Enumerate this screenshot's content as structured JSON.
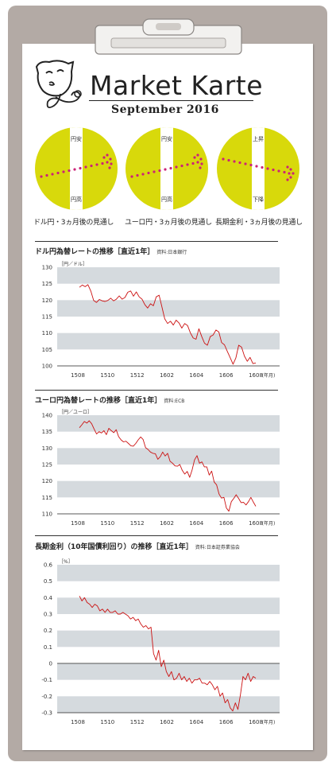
{
  "header": {
    "title": "Market Karte",
    "subtitle": "September   2016"
  },
  "outlooks": [
    {
      "top_label": "円安",
      "bottom_label": "円高",
      "caption": "ドル円・3ヵ月後の見通し",
      "direction": "up"
    },
    {
      "top_label": "円安",
      "bottom_label": "円高",
      "caption": "ユーロ円・3ヵ月後の見通し",
      "direction": "up"
    },
    {
      "top_label": "上昇",
      "bottom_label": "下降",
      "caption": "長期金利・3ヵ月後の見通し",
      "direction": "down"
    }
  ],
  "colors": {
    "outlook_circle": "#d8d90b",
    "arrow_dots": "#cc2277",
    "band": "#d5dade",
    "line": "#cc1111"
  },
  "chart_data": [
    {
      "type": "line",
      "title": "ドル円為替レートの推移［直近1年］",
      "source": "資料:日本銀行",
      "unit_label": "［円／ドル］",
      "xlabel_unit": "(年月)",
      "x_ticks": [
        "1508",
        "1510",
        "1512",
        "1602",
        "1604",
        "1606",
        "1608"
      ],
      "y_ticks": [
        "130",
        "125",
        "120",
        "115",
        "110",
        "105",
        "100"
      ],
      "ylim": [
        100,
        130
      ],
      "series": [
        {
          "values": [
            123.9,
            124.6,
            124.1,
            124.7,
            122.8,
            119.9,
            119.3,
            120.2,
            119.8,
            119.6,
            119.9,
            120.6,
            119.8,
            120.3,
            121.3,
            120.3,
            120.8,
            122.4,
            122.8,
            121.2,
            122.5,
            121.0,
            120.3,
            118.6,
            117.6,
            118.9,
            118.3,
            121.0,
            121.5,
            118.0,
            114.3,
            112.9,
            113.6,
            112.4,
            113.9,
            113.1,
            111.5,
            112.9,
            112.3,
            110.1,
            108.5,
            108.1,
            111.3,
            108.9,
            106.9,
            106.3,
            108.9,
            109.4,
            110.9,
            110.3,
            107.1,
            106.4,
            104.4,
            102.5,
            100.5,
            102.4,
            106.3,
            105.7,
            103.0,
            101.4,
            102.6,
            100.7,
            100.9
          ]
        }
      ]
    },
    {
      "type": "line",
      "title": "ユーロ円為替レートの推移［直近1年］",
      "source": "資料:ECB",
      "unit_label": "［円／ユーロ］",
      "xlabel_unit": "(年月)",
      "x_ticks": [
        "1508",
        "1510",
        "1512",
        "1602",
        "1604",
        "1606",
        "1608"
      ],
      "y_ticks": [
        "140",
        "135",
        "130",
        "125",
        "120",
        "115",
        "110"
      ],
      "ylim": [
        110,
        140
      ],
      "series": [
        {
          "values": [
            136.2,
            137.1,
            138.1,
            137.6,
            138.3,
            137.4,
            135.8,
            134.3,
            135.0,
            134.6,
            135.3,
            134.1,
            136.0,
            135.3,
            134.7,
            135.6,
            133.5,
            132.5,
            131.9,
            132.1,
            131.4,
            130.7,
            130.6,
            131.4,
            132.5,
            133.4,
            132.6,
            130.1,
            129.6,
            128.8,
            128.4,
            128.3,
            126.6,
            127.4,
            128.8,
            127.6,
            128.4,
            126.0,
            125.4,
            124.6,
            124.5,
            125.0,
            123.2,
            122.1,
            122.9,
            121.1,
            123.3,
            126.4,
            127.7,
            125.4,
            125.8,
            124.3,
            124.3,
            121.8,
            123.0,
            119.7,
            118.8,
            116.0,
            114.8,
            115.0,
            111.8,
            110.8,
            113.7,
            114.7,
            115.8,
            114.7,
            113.4,
            113.5,
            112.7,
            113.7,
            115.0,
            113.6,
            112.3
          ]
        }
      ]
    },
    {
      "type": "line",
      "title": "長期金利（10年国債利回り）の推移［直近1年］",
      "source": "資料:日本証券業協会",
      "unit_label": "［%］",
      "xlabel_unit": "(年月)",
      "x_ticks": [
        "1508",
        "1510",
        "1512",
        "1602",
        "1604",
        "1606",
        "1608"
      ],
      "y_ticks": [
        "0.6",
        "0.5",
        "0.4",
        "0.3",
        "0.2",
        "0.1",
        "0",
        "-0.1",
        "-0.2",
        "-0.3"
      ],
      "ylim": [
        -0.3,
        0.6
      ],
      "series": [
        {
          "values": [
            0.41,
            0.38,
            0.4,
            0.37,
            0.36,
            0.34,
            0.36,
            0.35,
            0.32,
            0.33,
            0.31,
            0.33,
            0.31,
            0.31,
            0.32,
            0.3,
            0.3,
            0.31,
            0.3,
            0.29,
            0.27,
            0.28,
            0.26,
            0.27,
            0.24,
            0.22,
            0.23,
            0.21,
            0.22,
            0.06,
            0.02,
            0.08,
            -0.02,
            0.02,
            -0.05,
            -0.08,
            -0.05,
            -0.1,
            -0.09,
            -0.06,
            -0.1,
            -0.08,
            -0.11,
            -0.09,
            -0.12,
            -0.1,
            -0.1,
            -0.09,
            -0.12,
            -0.12,
            -0.13,
            -0.11,
            -0.13,
            -0.16,
            -0.14,
            -0.2,
            -0.18,
            -0.24,
            -0.22,
            -0.27,
            -0.29,
            -0.24,
            -0.28,
            -0.19,
            -0.08,
            -0.1,
            -0.06,
            -0.11,
            -0.08,
            -0.09
          ]
        }
      ]
    }
  ]
}
